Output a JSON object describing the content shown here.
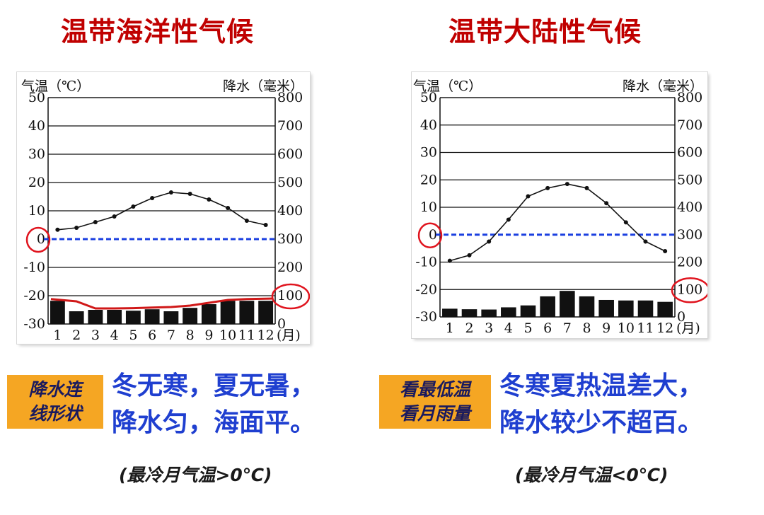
{
  "panels": [
    {
      "title": "温带海洋性气候",
      "tag_lines": [
        "降水连",
        "线形状"
      ],
      "summary_lines": [
        "冬无寒，夏无暑，",
        "降水匀，海面平。"
      ],
      "note": "(最冷月气温>0℃)"
    },
    {
      "title": "温带大陆性气候",
      "tag_lines": [
        "看最低温",
        "看月雨量"
      ],
      "summary_lines": [
        "冬寒夏热温差大，",
        "降水较少不超百。"
      ],
      "note": "(最冷月气温<0℃)"
    }
  ],
  "colors": {
    "title": "#c00000",
    "summary": "#1f3fd0",
    "tag_bg": "#f5a623",
    "zero_line": "#1a3fe0",
    "circle": "#e0141e",
    "precip_line": "#d01818"
  },
  "chart_data": [
    {
      "type": "bar+line",
      "temp_label": "气温（℃）",
      "precip_label": "降水（毫米）",
      "months_unit": "(月)",
      "months": [
        "1",
        "2",
        "3",
        "4",
        "5",
        "6",
        "7",
        "8",
        "9",
        "10",
        "11",
        "12"
      ],
      "temp_ticks": [
        "50",
        "40",
        "30",
        "20",
        "10",
        "0",
        "-10",
        "-20",
        "-30"
      ],
      "precip_ticks": [
        "800",
        "700",
        "600",
        "500",
        "400",
        "300",
        "200",
        "100",
        "0"
      ],
      "temp_lim": [
        -30,
        50
      ],
      "precip_lim": [
        0,
        800
      ],
      "temperature": [
        3.3,
        4,
        6,
        8,
        11.5,
        14.5,
        16.5,
        16,
        14,
        11,
        6.5,
        5
      ],
      "precipitation": [
        82,
        45,
        50,
        50,
        47,
        52,
        45,
        57,
        70,
        82,
        82,
        82
      ],
      "precip_trend_line": [
        88,
        80,
        55,
        55,
        56,
        58,
        60,
        65,
        75,
        85,
        88,
        90
      ],
      "show_precip_trend_line": true,
      "highlight_temp_zero": true,
      "highlight_precip_value": 100
    },
    {
      "type": "bar+line",
      "temp_label": "气温（℃）",
      "precip_label": "降水（毫米）",
      "months_unit": "(月)",
      "months": [
        "1",
        "2",
        "3",
        "4",
        "5",
        "6",
        "7",
        "8",
        "9",
        "10",
        "11",
        "12"
      ],
      "temp_ticks": [
        "50",
        "40",
        "30",
        "20",
        "10",
        "0",
        "-10",
        "-20",
        "-30"
      ],
      "precip_ticks": [
        "800",
        "700",
        "600",
        "500",
        "400",
        "300",
        "200",
        "100",
        "0"
      ],
      "temp_lim": [
        -30,
        50
      ],
      "precip_lim": [
        0,
        800
      ],
      "temperature": [
        -9.5,
        -7.5,
        -2.5,
        5.5,
        14,
        17,
        18.5,
        17,
        11.5,
        4.5,
        -2.5,
        -6
      ],
      "precipitation": [
        30,
        28,
        27,
        35,
        42,
        75,
        95,
        75,
        62,
        60,
        60,
        55
      ],
      "show_precip_trend_line": false,
      "highlight_temp_zero": true,
      "highlight_precip_value": 100
    }
  ]
}
